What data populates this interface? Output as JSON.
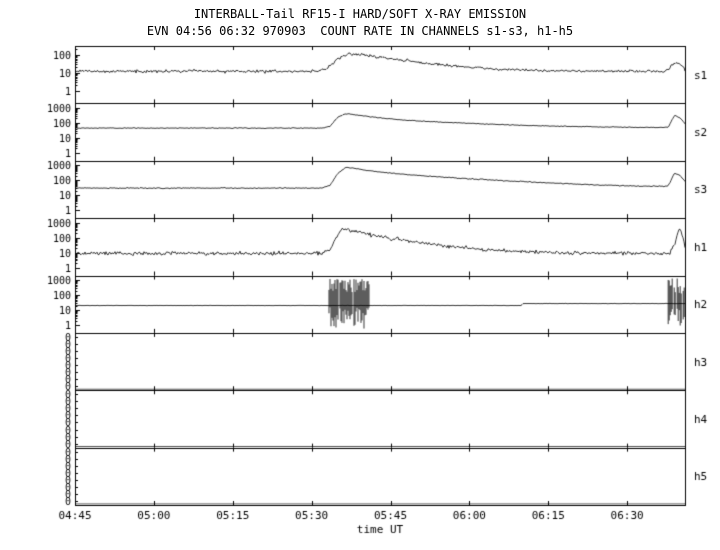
{
  "chart_data": {
    "type": "line",
    "title": "INTERBALL-Tail RF15-I HARD/SOFT X-RAY EMISSION",
    "subtitle": "EVN 04:56 06:32 970903  COUNT RATE IN CHANNELS s1-s3, h1-h5",
    "xlabel": "time UT",
    "x_ticks": [
      "04:45",
      "05:00",
      "05:15",
      "05:30",
      "05:45",
      "06:00",
      "06:15",
      "06:30"
    ],
    "x_tick_minutes": [
      0,
      15,
      30,
      45,
      60,
      75,
      90,
      105
    ],
    "x_range_minutes": [
      0,
      116
    ],
    "grid": false,
    "legend": "none",
    "line_color": "#000000",
    "background": "#ffffff",
    "panels": [
      {
        "label": "s1",
        "scale": "log",
        "ylim": [
          0.2,
          300
        ],
        "y_tick_values": [
          1,
          10,
          100
        ],
        "y_tick_labels": [
          "1",
          "10",
          "100"
        ],
        "noise": 0.13,
        "keypoints": [
          [
            0,
            12
          ],
          [
            46,
            12
          ],
          [
            48,
            18
          ],
          [
            50,
            60
          ],
          [
            52,
            110
          ],
          [
            54,
            100
          ],
          [
            57,
            80
          ],
          [
            60,
            60
          ],
          [
            64,
            42
          ],
          [
            68,
            30
          ],
          [
            72,
            24
          ],
          [
            76,
            19
          ],
          [
            82,
            15
          ],
          [
            90,
            13
          ],
          [
            100,
            12
          ],
          [
            110,
            12
          ],
          [
            112.5,
            12
          ],
          [
            113.8,
            32
          ],
          [
            114.8,
            35
          ],
          [
            115.5,
            22
          ],
          [
            116,
            14
          ]
        ]
      },
      {
        "label": "s2",
        "scale": "log",
        "ylim": [
          0.3,
          2000
        ],
        "y_tick_values": [
          1,
          10,
          100,
          1000
        ],
        "y_tick_labels": [
          "1",
          "10",
          "100",
          "1000"
        ],
        "noise": 0.05,
        "keypoints": [
          [
            0,
            45
          ],
          [
            47,
            45
          ],
          [
            48.5,
            60
          ],
          [
            50,
            250
          ],
          [
            51.5,
            420
          ],
          [
            53,
            360
          ],
          [
            55,
            285
          ],
          [
            58,
            215
          ],
          [
            62,
            160
          ],
          [
            66,
            132
          ],
          [
            70,
            112
          ],
          [
            75,
            94
          ],
          [
            80,
            80
          ],
          [
            86,
            68
          ],
          [
            92,
            60
          ],
          [
            100,
            54
          ],
          [
            108,
            50
          ],
          [
            112.8,
            50
          ],
          [
            114,
            320
          ],
          [
            115,
            230
          ],
          [
            116,
            90
          ]
        ]
      },
      {
        "label": "s3",
        "scale": "log",
        "ylim": [
          0.3,
          2000
        ],
        "y_tick_values": [
          1,
          10,
          100,
          1000
        ],
        "y_tick_labels": [
          "1",
          "10",
          "100",
          "1000"
        ],
        "noise": 0.06,
        "keypoints": [
          [
            0,
            30
          ],
          [
            47,
            30
          ],
          [
            48.5,
            45
          ],
          [
            50,
            300
          ],
          [
            51.5,
            700
          ],
          [
            53,
            620
          ],
          [
            55,
            480
          ],
          [
            58,
            350
          ],
          [
            62,
            260
          ],
          [
            66,
            200
          ],
          [
            70,
            160
          ],
          [
            75,
            125
          ],
          [
            80,
            100
          ],
          [
            86,
            78
          ],
          [
            92,
            62
          ],
          [
            100,
            48
          ],
          [
            108,
            40
          ],
          [
            112.8,
            40
          ],
          [
            114,
            300
          ],
          [
            115,
            220
          ],
          [
            116,
            85
          ]
        ]
      },
      {
        "label": "h1",
        "scale": "log",
        "ylim": [
          0.3,
          2000
        ],
        "y_tick_values": [
          1,
          10,
          100,
          1000
        ],
        "y_tick_labels": [
          "1",
          "10",
          "100",
          "1000"
        ],
        "noise": 0.2,
        "keypoints": [
          [
            0,
            9
          ],
          [
            47,
            9
          ],
          [
            48.5,
            16
          ],
          [
            50,
            160
          ],
          [
            51,
            400
          ],
          [
            52.2,
            330
          ],
          [
            53.5,
            255
          ],
          [
            55,
            190
          ],
          [
            57,
            140
          ],
          [
            60,
            92
          ],
          [
            63,
            62
          ],
          [
            66,
            45
          ],
          [
            70,
            30
          ],
          [
            74,
            22
          ],
          [
            78,
            16
          ],
          [
            84,
            12
          ],
          [
            92,
            10
          ],
          [
            102,
            9
          ],
          [
            110,
            9
          ],
          [
            113,
            9
          ],
          [
            114.2,
            45
          ],
          [
            114.9,
            480
          ],
          [
            115.6,
            110
          ],
          [
            116,
            25
          ]
        ]
      },
      {
        "label": "h2",
        "scale": "log",
        "ylim": [
          0.3,
          2000
        ],
        "y_tick_values": [
          1,
          10,
          100,
          1000
        ],
        "y_tick_labels": [
          "1",
          "10",
          "100",
          "1000"
        ],
        "noise": 0.02,
        "keypoints": [
          [
            0,
            20
          ],
          [
            84.8,
            20
          ],
          [
            85.2,
            27
          ],
          [
            116,
            27
          ]
        ],
        "bursts": [
          {
            "t": [
              48.3,
              56.0
            ],
            "top": [
              150,
              1400
            ],
            "bottom": [
              0.5,
              15
            ],
            "gap": 0.12
          },
          {
            "t": [
              112.8,
              116
            ],
            "top": [
              120,
              1300
            ],
            "bottom": [
              0.5,
              15
            ],
            "gap": 0.2
          }
        ]
      },
      {
        "label": "h3",
        "scale": "zeros",
        "y_tick_labels": [
          "0",
          "0",
          "0",
          "0",
          "0",
          "0",
          "0",
          "0"
        ],
        "flat": true
      },
      {
        "label": "h4",
        "scale": "zeros",
        "y_tick_labels": [
          "0",
          "0",
          "0",
          "0",
          "0",
          "0",
          "0",
          "0"
        ],
        "flat": true
      },
      {
        "label": "h5",
        "scale": "zeros",
        "y_tick_labels": [
          "0",
          "0",
          "0",
          "0",
          "0",
          "0",
          "0",
          "0"
        ],
        "flat": true
      }
    ]
  }
}
